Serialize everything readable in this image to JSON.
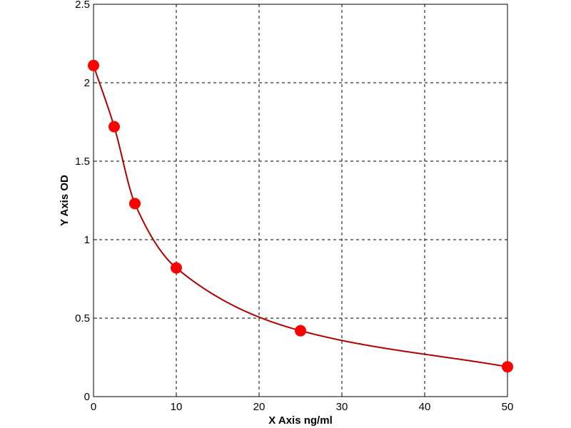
{
  "chart_data": {
    "type": "scatter",
    "title": "",
    "xlabel": "X Axis ng/ml",
    "ylabel": "Y Axis OD",
    "xlim": [
      0,
      50
    ],
    "ylim": [
      0,
      2.5
    ],
    "x_ticks": [
      0,
      10,
      20,
      30,
      40,
      50
    ],
    "y_ticks": [
      0,
      0.5,
      1,
      1.5,
      2,
      2.5
    ],
    "x_tick_labels": [
      "0",
      "10",
      "20",
      "30",
      "40",
      "50"
    ],
    "y_tick_labels": [
      "0",
      "0.5",
      "1",
      "1.5",
      "2",
      "2.5"
    ],
    "grid": true,
    "grid_style": "dashed",
    "series": [
      {
        "x": [
          0,
          2.5,
          5,
          10,
          25,
          50
        ],
        "y": [
          2.11,
          1.72,
          1.23,
          0.82,
          0.42,
          0.19
        ],
        "marker_color": "#ff0000",
        "fit_curve": true,
        "line_color": "#b00000"
      }
    ]
  }
}
